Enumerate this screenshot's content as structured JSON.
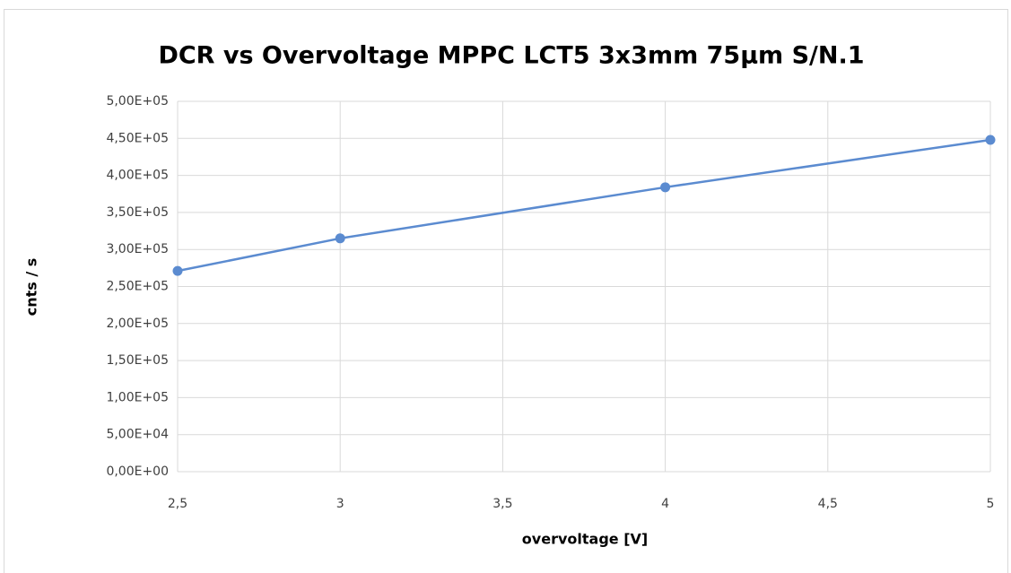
{
  "chart_data": {
    "type": "line",
    "title": "DCR vs Overvoltage MPPC LCT5 3x3mm 75µm S/N.1",
    "xlabel": "overvoltage [V]",
    "ylabel": "cnts / s",
    "x": [
      2.5,
      3,
      4,
      5
    ],
    "values": [
      271000,
      315000,
      384000,
      448000
    ],
    "color": "#5b8bd0",
    "xlim": [
      2.5,
      5
    ],
    "xticks": [
      {
        "value": 2.5,
        "label": "2,5"
      },
      3,
      {
        "value": 3.5,
        "label": "3,5"
      },
      4,
      {
        "value": 4.5,
        "label": "4,5"
      },
      5
    ],
    "ylim": [
      0,
      500000
    ],
    "yticks": [
      {
        "value": 0,
        "label": "0,00E+00"
      },
      {
        "value": 50000,
        "label": "5,00E+04"
      },
      {
        "value": 100000,
        "label": "1,00E+05"
      },
      {
        "value": 150000,
        "label": "1,50E+05"
      },
      {
        "value": 200000,
        "label": "2,00E+05"
      },
      {
        "value": 250000,
        "label": "2,50E+05"
      },
      {
        "value": 300000,
        "label": "3,00E+05"
      },
      {
        "value": 350000,
        "label": "3,50E+05"
      },
      {
        "value": 400000,
        "label": "4,00E+05"
      },
      {
        "value": 450000,
        "label": "4,50E+05"
      },
      {
        "value": 500000,
        "label": "5,00E+05"
      }
    ],
    "grid": true
  }
}
